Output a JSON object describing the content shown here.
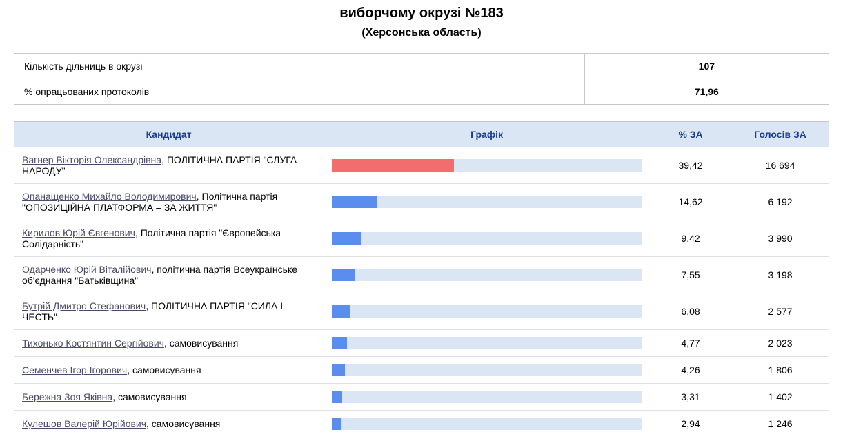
{
  "header": {
    "title": "виборчому окрузі №183",
    "subtitle": "(Херсонська область)"
  },
  "summary": {
    "rows": [
      {
        "label": "Кількість дільниць в окрузі",
        "value": "107"
      },
      {
        "label": "% опрацьованих протоколів",
        "value": "71,96"
      }
    ]
  },
  "results": {
    "columns": {
      "candidate": "Кандидат",
      "chart": "Графік",
      "percent": "% ЗА",
      "votes": "Голосів ЗА"
    },
    "chart_style": {
      "track_color": "#dbe6f5",
      "fill_default": "#5b8def",
      "fill_leader": "#f26d6d",
      "max_percent": 100
    },
    "rows": [
      {
        "name": "Вагнер Вікторія Олександрівна",
        "party": ", ПОЛІТИЧНА ПАРТІЯ \"СЛУГА НАРОДУ\"",
        "percent": "39,42",
        "votes": "16 694",
        "bar_pct": 39.42,
        "leader": true
      },
      {
        "name": "Опанащенко Михайло Володимирович",
        "party": ", Політична партія \"ОПОЗИЦІЙНА ПЛАТФОРМА – ЗА ЖИТТЯ\"",
        "percent": "14,62",
        "votes": "6 192",
        "bar_pct": 14.62,
        "leader": false
      },
      {
        "name": "Кирилов Юрій Євгенович",
        "party": ", Політична партія \"Європейська Солідарність\"",
        "percent": "9,42",
        "votes": "3 990",
        "bar_pct": 9.42,
        "leader": false
      },
      {
        "name": "Одарченко Юрій Віталійович",
        "party": ", політична партія Всеукраїнське об'єднання \"Батьківщина\"",
        "percent": "7,55",
        "votes": "3 198",
        "bar_pct": 7.55,
        "leader": false
      },
      {
        "name": "Бутрій Дмитро Стефанович",
        "party": ", ПОЛІТИЧНА ПАРТІЯ \"СИЛА І ЧЕСТЬ\"",
        "percent": "6,08",
        "votes": "2 577",
        "bar_pct": 6.08,
        "leader": false
      },
      {
        "name": "Тихонько Костянтин Сергійович",
        "party": ", самовисування",
        "percent": "4,77",
        "votes": "2 023",
        "bar_pct": 4.77,
        "leader": false
      },
      {
        "name": "Семенчев Ігор Ігорович",
        "party": ", самовисування",
        "percent": "4,26",
        "votes": "1 806",
        "bar_pct": 4.26,
        "leader": false
      },
      {
        "name": "Бережна Зоя Яківна",
        "party": ", самовисування",
        "percent": "3,31",
        "votes": "1 402",
        "bar_pct": 3.31,
        "leader": false
      },
      {
        "name": "Кулешов Валерій Юрійович",
        "party": ", самовисування",
        "percent": "2,94",
        "votes": "1 246",
        "bar_pct": 2.94,
        "leader": false
      }
    ]
  }
}
